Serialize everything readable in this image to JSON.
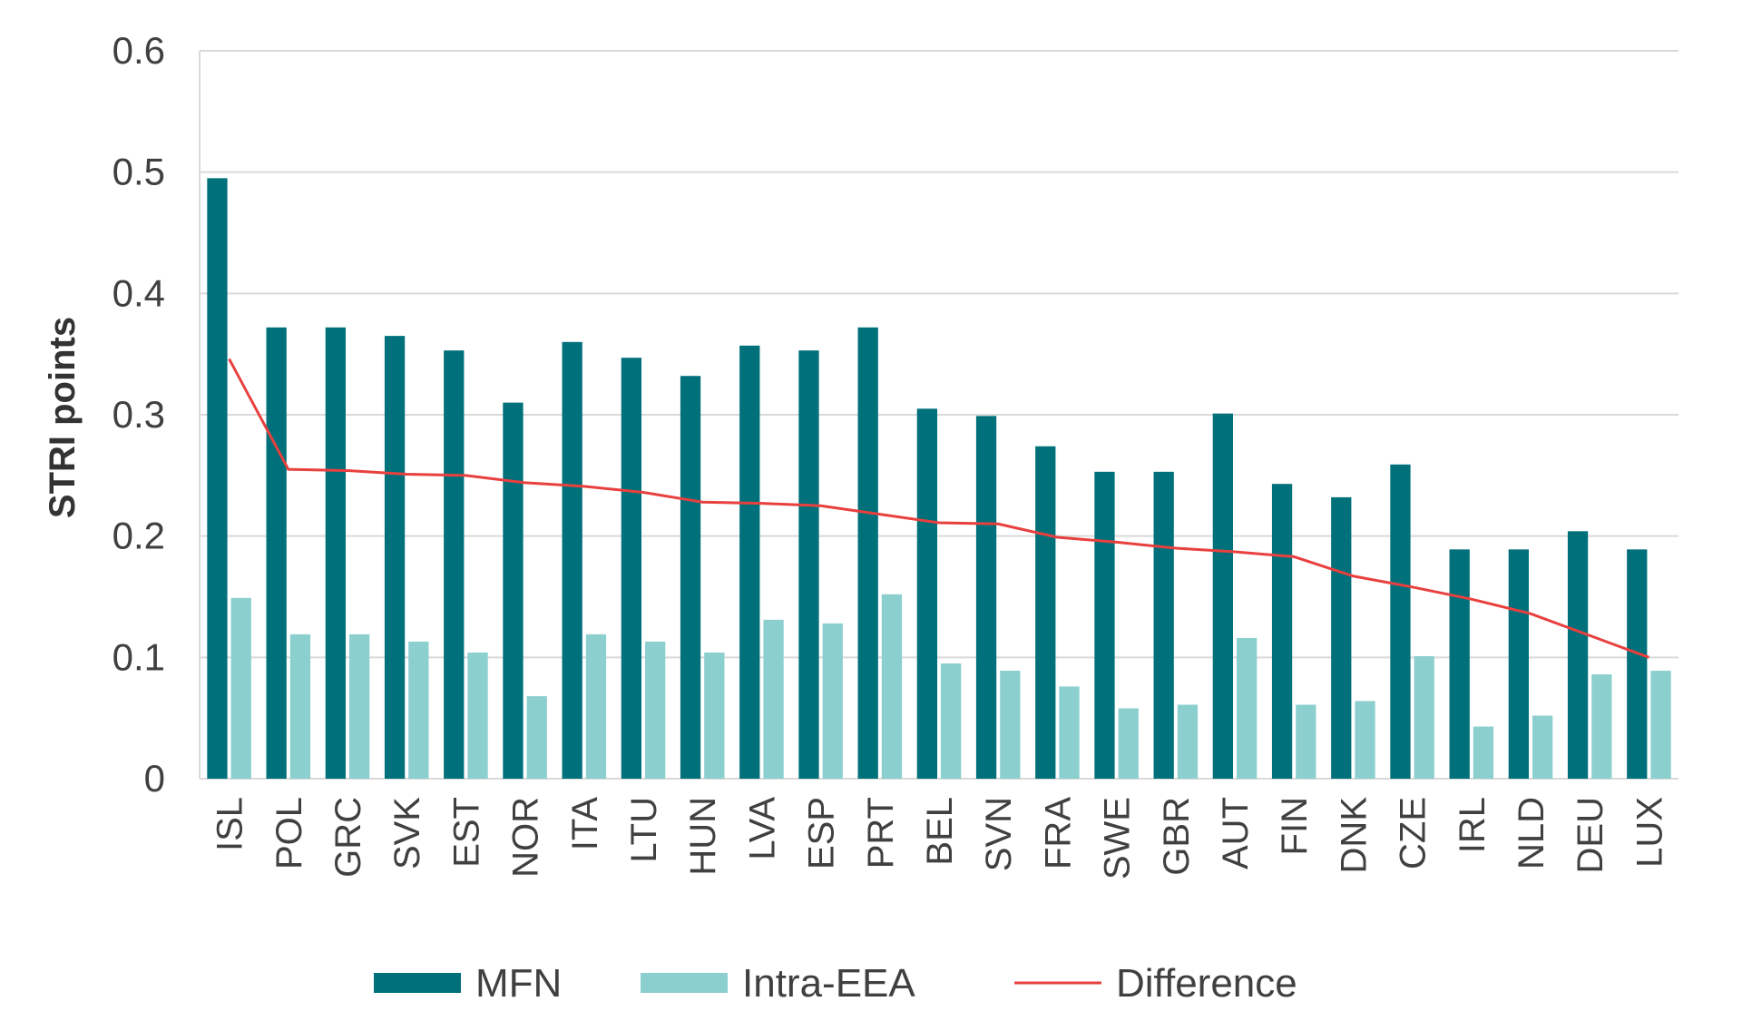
{
  "chart_data": {
    "type": "bar",
    "title": "",
    "xlabel": "",
    "ylabel": "STRI points",
    "ylim": [
      0,
      0.6
    ],
    "yticks": [
      "0",
      "0.1",
      "0.2",
      "0.3",
      "0.4",
      "0.5",
      "0.6"
    ],
    "grid": true,
    "legend_position": "bottom",
    "categories": [
      "ISL",
      "POL",
      "GRC",
      "SVK",
      "EST",
      "NOR",
      "ITA",
      "LTU",
      "HUN",
      "LVA",
      "ESP",
      "PRT",
      "BEL",
      "SVN",
      "FRA",
      "SWE",
      "GBR",
      "AUT",
      "FIN",
      "DNK",
      "CZE",
      "IRL",
      "NLD",
      "DEU",
      "LUX"
    ],
    "series": [
      {
        "name": "MFN",
        "type": "bar",
        "color": "#00707a",
        "values": [
          0.495,
          0.372,
          0.372,
          0.365,
          0.353,
          0.31,
          0.36,
          0.347,
          0.332,
          0.357,
          0.353,
          0.372,
          0.305,
          0.299,
          0.274,
          0.253,
          0.253,
          0.301,
          0.243,
          0.232,
          0.259,
          0.189,
          0.189,
          0.204,
          0.189
        ]
      },
      {
        "name": "Intra-EEA",
        "type": "bar",
        "color": "#8ccfcf",
        "values": [
          0.149,
          0.119,
          0.119,
          0.113,
          0.104,
          0.068,
          0.119,
          0.113,
          0.104,
          0.131,
          0.128,
          0.152,
          0.095,
          0.089,
          0.076,
          0.058,
          0.061,
          0.116,
          0.061,
          0.064,
          0.101,
          0.043,
          0.052,
          0.086,
          0.089
        ]
      },
      {
        "name": "Difference",
        "type": "line",
        "color": "#e8403e",
        "values": [
          0.346,
          0.255,
          0.254,
          0.251,
          0.25,
          0.244,
          0.241,
          0.236,
          0.228,
          0.227,
          0.225,
          0.218,
          0.211,
          0.21,
          0.199,
          0.195,
          0.19,
          0.187,
          0.183,
          0.167,
          0.158,
          0.148,
          0.136,
          0.118,
          0.1
        ]
      }
    ]
  }
}
